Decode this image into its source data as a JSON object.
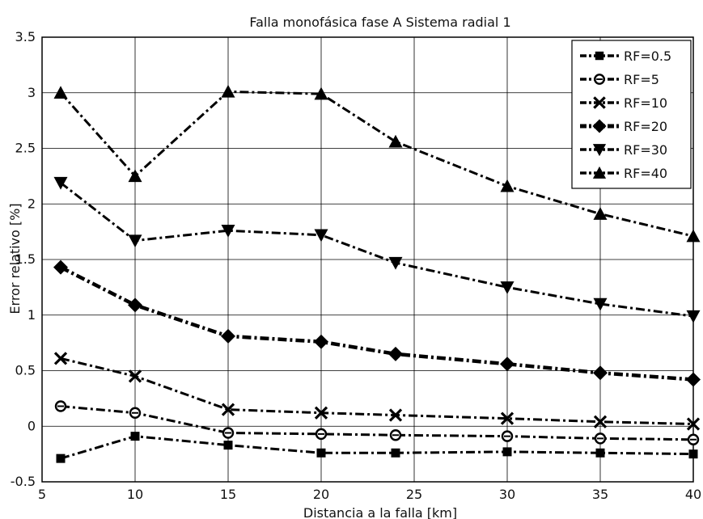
{
  "chart_data": {
    "type": "line",
    "title": "Falla monofásica fase A Sistema radial 1",
    "xlabel": "Distancia a la falla [km]",
    "ylabel": "Error relativo [%]",
    "xlim": [
      5,
      40
    ],
    "ylim": [
      -0.5,
      3.5
    ],
    "x_ticks": [
      "5",
      "10",
      "15",
      "20",
      "25",
      "30",
      "35",
      "40"
    ],
    "y_ticks": [
      "-0.5",
      "0",
      "0.5",
      "1",
      "1.5",
      "2",
      "2.5",
      "3",
      "3.5"
    ],
    "grid": true,
    "legend_position": "top-right",
    "x": [
      6,
      10,
      15,
      20,
      24,
      30,
      35,
      40
    ],
    "series": [
      {
        "name": "RF=0.5",
        "marker": "square",
        "values": [
          -0.29,
          -0.09,
          -0.17,
          -0.24,
          -0.24,
          -0.23,
          -0.24,
          -0.25
        ]
      },
      {
        "name": "RF=5",
        "marker": "circle",
        "values": [
          0.18,
          0.12,
          -0.06,
          -0.07,
          -0.08,
          -0.09,
          -0.11,
          -0.12
        ]
      },
      {
        "name": "RF=10",
        "marker": "x",
        "values": [
          0.61,
          0.45,
          0.15,
          0.12,
          0.1,
          0.07,
          0.04,
          0.02
        ]
      },
      {
        "name": "RF=20",
        "marker": "diamond",
        "values": [
          1.43,
          1.09,
          0.81,
          0.76,
          0.65,
          0.56,
          0.48,
          0.42
        ]
      },
      {
        "name": "RF=30",
        "marker": "triangle-down",
        "values": [
          2.19,
          1.67,
          1.76,
          1.72,
          1.47,
          1.25,
          1.1,
          0.99
        ]
      },
      {
        "name": "RF=40",
        "marker": "triangle-up",
        "values": [
          3.0,
          2.25,
          3.01,
          2.99,
          2.56,
          2.16,
          1.91,
          1.71
        ]
      }
    ]
  }
}
